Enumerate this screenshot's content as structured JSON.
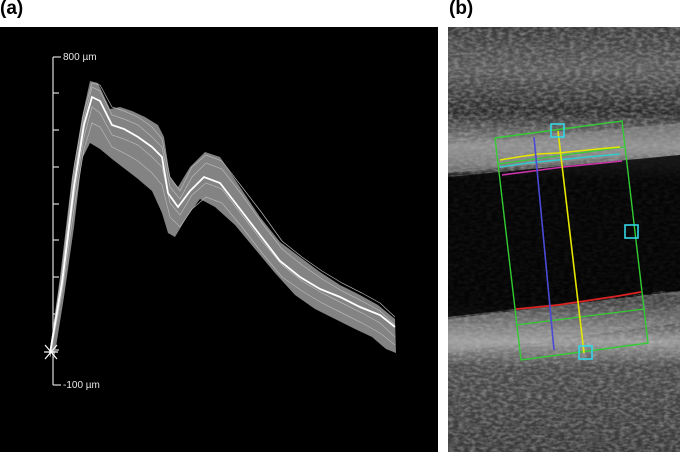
{
  "panels": {
    "a": {
      "label": "(a)",
      "scale": {
        "top_label": "800 µm",
        "bottom_label": "-100 µm"
      }
    },
    "b": {
      "label": "(b)"
    }
  },
  "colors": {
    "trace_band": "#8c8c8c",
    "mean_trace": "#ffffff",
    "roi_box": "#33cc33",
    "handle": "#33d6e6",
    "line_yellow": "#e6e600",
    "line_blue": "#4a4ad6",
    "line_magenta": "#cc33aa",
    "line_cyan": "#33cccc",
    "line_red": "#dd2222"
  }
}
